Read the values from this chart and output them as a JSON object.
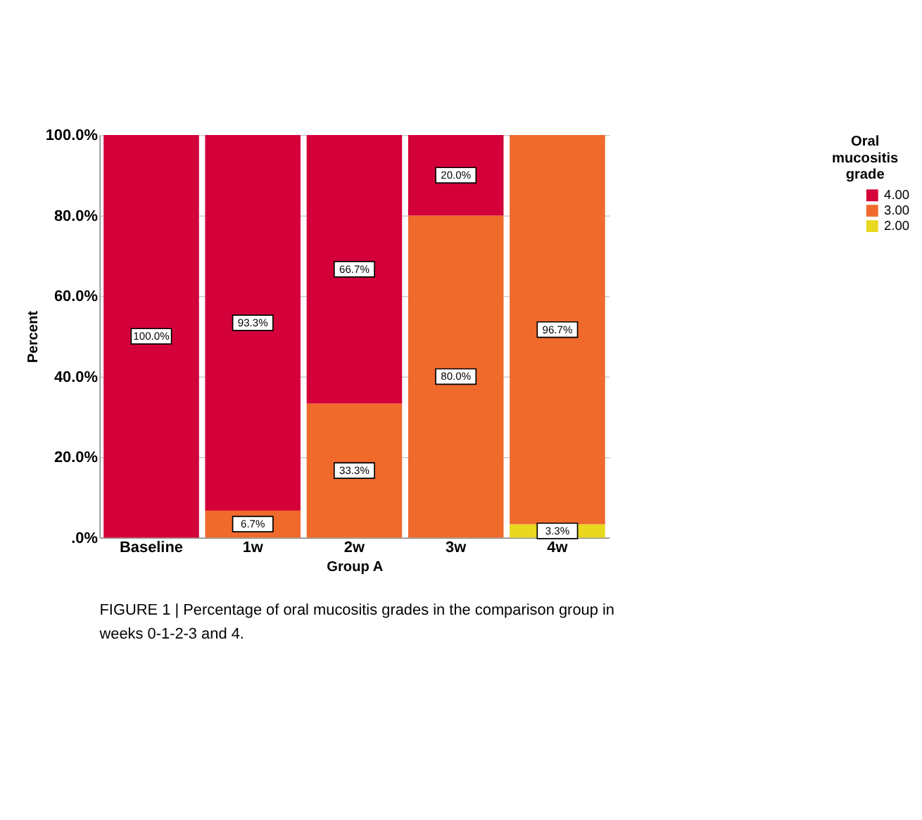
{
  "chart_data": {
    "type": "bar",
    "stacked": true,
    "xlabel": "Group A",
    "ylabel": "Percent",
    "legend_title": "Oral mucositis grade",
    "legend": "top right",
    "grid": "y",
    "categories": [
      "Baseline",
      "1w",
      "2w",
      "3w",
      "4w"
    ],
    "series": [
      {
        "name": "2.00",
        "color": "#e8d81e",
        "values": [
          null,
          null,
          null,
          null,
          3.3
        ],
        "value_labels": [
          null,
          null,
          null,
          null,
          "3.3%"
        ]
      },
      {
        "name": "3.00",
        "color": "#f06a2c",
        "values": [
          null,
          6.7,
          33.3,
          80.0,
          96.7
        ],
        "value_labels": [
          null,
          "6.7%",
          "33.3%",
          "80.0%",
          "96.7%"
        ]
      },
      {
        "name": "4.00",
        "color": "#d4003a",
        "values": [
          100.0,
          93.3,
          66.7,
          20.0,
          null
        ],
        "value_labels": [
          "100.0%",
          "93.3%",
          "66.7%",
          "20.0%",
          null
        ]
      }
    ],
    "ylim": [
      0,
      100
    ],
    "yticks": [
      {
        "value": 0,
        "label": ".0%"
      },
      {
        "value": 20,
        "label": "20.0%"
      },
      {
        "value": 40,
        "label": "40.0%"
      },
      {
        "value": 60,
        "label": "60.0%"
      },
      {
        "value": 80,
        "label": "80.0%"
      },
      {
        "value": 100,
        "label": "100.0%"
      }
    ],
    "annotations": [
      "FIGURE 1 | Percentage of oral mucositis grades in the comparison group in weeks 0-1-2-3 and 4."
    ]
  }
}
